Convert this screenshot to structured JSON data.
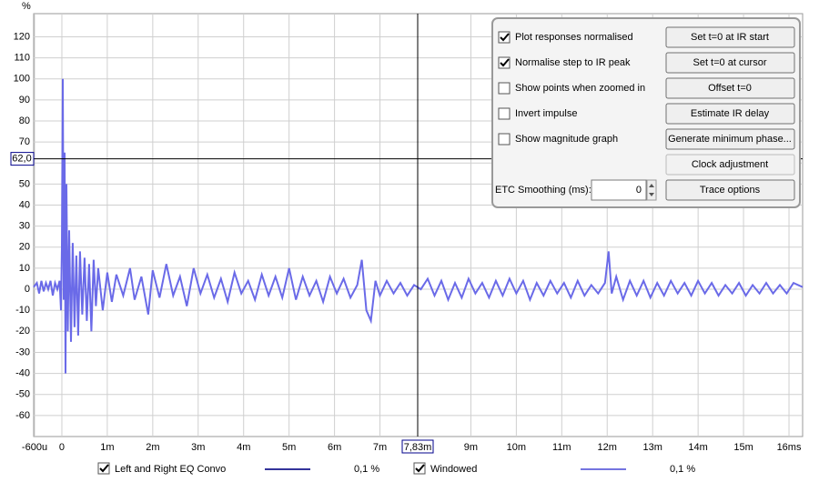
{
  "chart_data": {
    "type": "line",
    "y_unit": "%",
    "xlim": [
      -0.62,
      16.3
    ],
    "ylim": [
      -70,
      131
    ],
    "xticks": [
      {
        "value": -0.6,
        "label": "-600u"
      },
      0,
      {
        "value": 1,
        "label": "1m"
      },
      {
        "value": 2,
        "label": "2m"
      },
      {
        "value": 3,
        "label": "3m"
      },
      {
        "value": 4,
        "label": "4m"
      },
      {
        "value": 5,
        "label": "5m"
      },
      {
        "value": 6,
        "label": "6m"
      },
      {
        "value": 7,
        "label": "7m"
      },
      {
        "value": 9,
        "label": "9m"
      },
      {
        "value": 10,
        "label": "10m"
      },
      {
        "value": 11,
        "label": "11m"
      },
      {
        "value": 12,
        "label": "12m"
      },
      {
        "value": 13,
        "label": "13m"
      },
      {
        "value": 14,
        "label": "14m"
      },
      {
        "value": 15,
        "label": "15m"
      },
      {
        "value": 16,
        "label": "16ms"
      }
    ],
    "yticks": [
      -60,
      -50,
      -40,
      -30,
      -20,
      -10,
      0,
      10,
      20,
      30,
      40,
      50,
      60,
      70,
      80,
      90,
      100,
      110,
      120
    ],
    "grid": true,
    "cursor": {
      "x": {
        "value": 7.83,
        "label": "7,83m"
      },
      "y": {
        "value": 62,
        "label": "62,0"
      }
    },
    "x": [
      -0.62,
      -0.55,
      -0.5,
      -0.45,
      -0.4,
      -0.35,
      -0.3,
      -0.25,
      -0.2,
      -0.15,
      -0.1,
      -0.05,
      -0.02,
      0,
      0.02,
      0.04,
      0.06,
      0.08,
      0.1,
      0.13,
      0.16,
      0.2,
      0.24,
      0.28,
      0.32,
      0.36,
      0.4,
      0.45,
      0.5,
      0.55,
      0.6,
      0.65,
      0.7,
      0.75,
      0.8,
      0.9,
      1.0,
      1.1,
      1.2,
      1.35,
      1.5,
      1.6,
      1.75,
      1.9,
      2.0,
      2.15,
      2.3,
      2.45,
      2.6,
      2.75,
      2.9,
      3.05,
      3.2,
      3.35,
      3.5,
      3.65,
      3.8,
      3.95,
      4.1,
      4.25,
      4.4,
      4.55,
      4.7,
      4.85,
      5.0,
      5.15,
      5.3,
      5.45,
      5.6,
      5.75,
      5.9,
      6.05,
      6.2,
      6.35,
      6.5,
      6.6,
      6.7,
      6.8,
      6.9,
      7.0,
      7.15,
      7.3,
      7.45,
      7.6,
      7.75,
      7.9,
      8.05,
      8.2,
      8.35,
      8.5,
      8.65,
      8.8,
      8.95,
      9.1,
      9.25,
      9.4,
      9.55,
      9.7,
      9.85,
      10.0,
      10.15,
      10.3,
      10.45,
      10.6,
      10.75,
      10.9,
      11.05,
      11.2,
      11.35,
      11.5,
      11.65,
      11.8,
      11.95,
      12.03,
      12.1,
      12.2,
      12.35,
      12.5,
      12.65,
      12.8,
      12.95,
      13.1,
      13.25,
      13.4,
      13.55,
      13.7,
      13.85,
      14.0,
      14.15,
      14.3,
      14.45,
      14.6,
      14.75,
      14.9,
      15.05,
      15.2,
      15.35,
      15.5,
      15.65,
      15.8,
      15.95,
      16.1,
      16.3
    ],
    "series": [
      {
        "name": "Windowed",
        "color": "#6a6ae8",
        "values": [
          1,
          3,
          -2,
          4,
          -1,
          3,
          0,
          4,
          -3,
          3,
          0,
          4,
          -10,
          20,
          100,
          -5,
          65,
          -40,
          50,
          -20,
          28,
          -25,
          22,
          -18,
          16,
          -22,
          18,
          -12,
          15,
          -15,
          12,
          -20,
          14,
          -8,
          10,
          -10,
          8,
          -6,
          7,
          -3,
          10,
          -5,
          6,
          -12,
          9,
          -4,
          12,
          -3,
          6,
          -8,
          10,
          -2,
          7,
          -4,
          5,
          -6,
          8,
          -2,
          4,
          -5,
          7,
          -3,
          6,
          -4,
          10,
          -5,
          6,
          -3,
          4,
          -6,
          6,
          -2,
          5,
          -4,
          2,
          14,
          -10,
          -15,
          4,
          -3,
          4,
          -2,
          3,
          -3,
          2,
          0,
          5,
          -3,
          4,
          -5,
          3,
          -4,
          5,
          -2,
          3,
          -4,
          4,
          -3,
          5,
          -2,
          4,
          -5,
          3,
          -3,
          4,
          -2,
          3,
          -4,
          4,
          -3,
          2,
          -2,
          3,
          18,
          -2,
          6,
          -5,
          4,
          -3,
          4,
          -4,
          3,
          -3,
          4,
          -2,
          3,
          -3,
          4,
          -2,
          3,
          -3,
          2,
          -2,
          3,
          -3,
          2,
          -2,
          3,
          -2,
          2,
          -2,
          3,
          1
        ]
      }
    ]
  },
  "legend": [
    {
      "name": "Left and Right EQ Convo",
      "checked": true,
      "color": "#33339a",
      "label": "0,1 %"
    },
    {
      "name": "Windowed",
      "checked": true,
      "color": "#7474e0",
      "label": "0,1 %"
    }
  ],
  "panel": {
    "checkboxes": [
      {
        "label": "Plot responses normalised",
        "checked": true
      },
      {
        "label": "Normalise step to IR peak",
        "checked": true
      },
      {
        "label": "Show points when zoomed in",
        "checked": false
      },
      {
        "label": "Invert impulse",
        "checked": false
      },
      {
        "label": "Show magnitude graph",
        "checked": false
      }
    ],
    "buttons": [
      {
        "label": "Set t=0 at IR start",
        "enabled": true
      },
      {
        "label": "Set t=0 at cursor",
        "enabled": true
      },
      {
        "label": "Offset t=0",
        "enabled": true
      },
      {
        "label": "Estimate IR delay",
        "enabled": true
      },
      {
        "label": "Generate minimum phase...",
        "enabled": true
      },
      {
        "label": "Clock adjustment",
        "enabled": false
      },
      {
        "label": "Trace options",
        "enabled": true
      }
    ],
    "smoothing": {
      "label": "ETC Smoothing (ms):",
      "value": "0"
    }
  }
}
